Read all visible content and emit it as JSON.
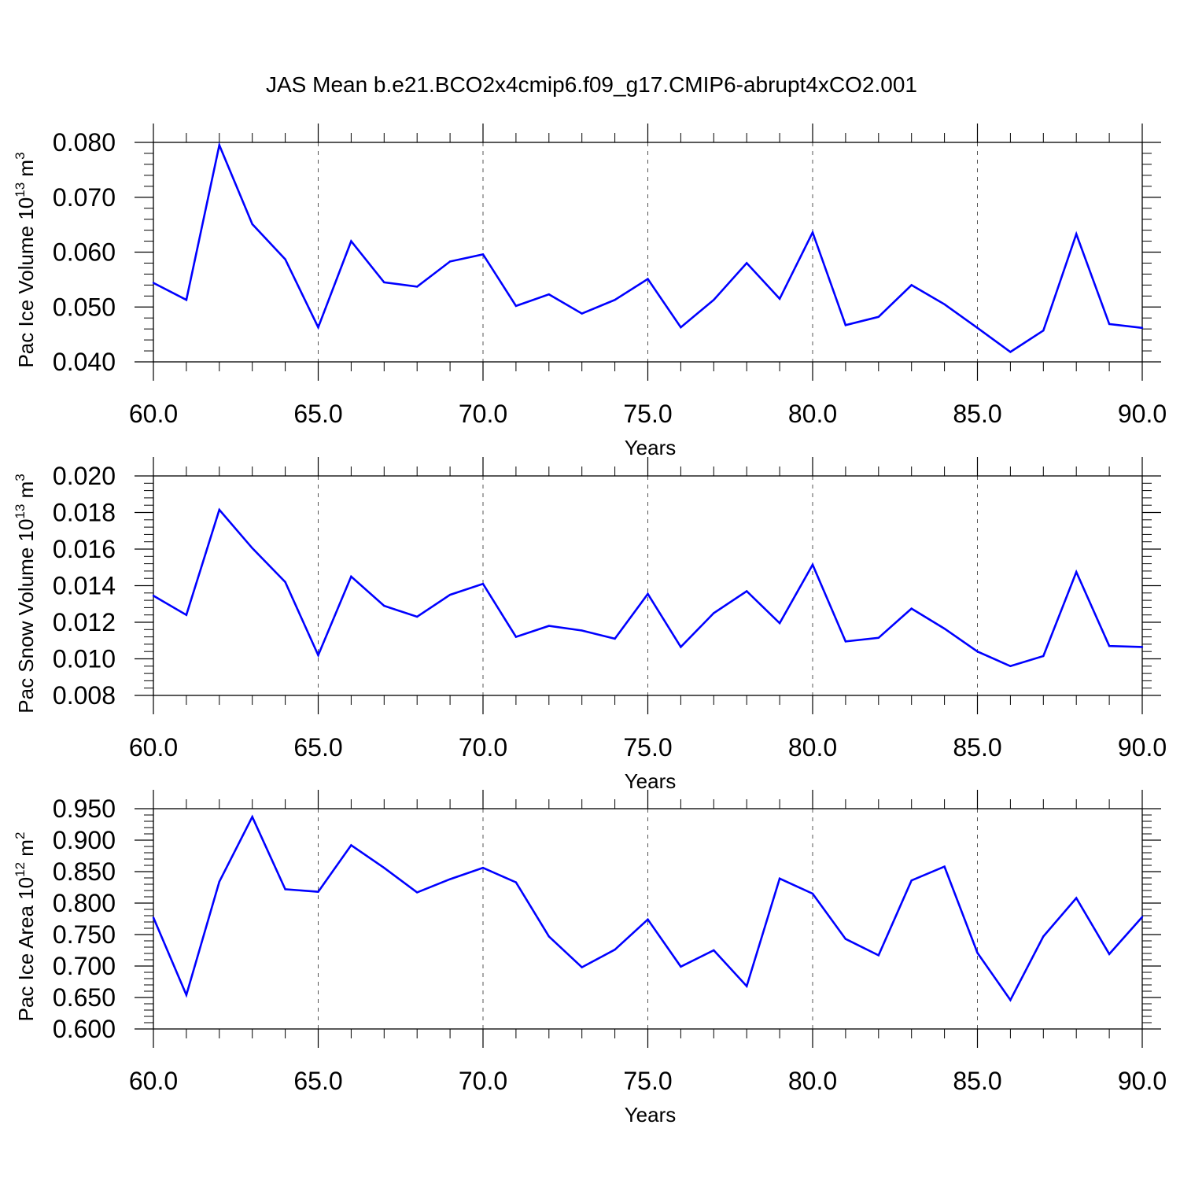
{
  "title": "JAS Mean b.e21.BCO2x4cmip6.f09_g17.CMIP6-abrupt4xCO2.001",
  "colors": {
    "line": "#0000ff",
    "axis": "#000000",
    "grid": "#555555"
  },
  "chart_data": [
    {
      "type": "line",
      "ylabel_prefix": "Pac Ice Volume 10",
      "ylabel_exp": "13",
      "ylabel_unit": " m",
      "ylabel_unit_exp": "3",
      "xlabel": "Years",
      "xlim": [
        60,
        90
      ],
      "ylim": [
        0.04,
        0.08
      ],
      "xticks": [
        "60.0",
        "65.0",
        "70.0",
        "75.0",
        "80.0",
        "85.0",
        "90.0"
      ],
      "yticks": [
        "0.040",
        "0.050",
        "0.060",
        "0.070",
        "0.080"
      ],
      "grid": "x dashed",
      "x": [
        60,
        61,
        62,
        63,
        64,
        65,
        66,
        67,
        68,
        69,
        70,
        71,
        72,
        73,
        74,
        75,
        76,
        77,
        78,
        79,
        80,
        81,
        82,
        83,
        84,
        85,
        86,
        87,
        88,
        89,
        90
      ],
      "values": [
        0.0544,
        0.0513,
        0.0795,
        0.0651,
        0.0587,
        0.0463,
        0.062,
        0.0545,
        0.0537,
        0.0583,
        0.0596,
        0.0502,
        0.0523,
        0.0488,
        0.0513,
        0.0551,
        0.0463,
        0.0513,
        0.058,
        0.0515,
        0.0636,
        0.0467,
        0.0482,
        0.054,
        0.0505,
        0.0462,
        0.0418,
        0.0457,
        0.0633,
        0.0469,
        0.0462
      ]
    },
    {
      "type": "line",
      "ylabel_prefix": "Pac Snow Volume 10",
      "ylabel_exp": "13",
      "ylabel_unit": " m",
      "ylabel_unit_exp": "3",
      "xlabel": "Years",
      "xlim": [
        60,
        90
      ],
      "ylim": [
        0.008,
        0.02
      ],
      "xticks": [
        "60.0",
        "65.0",
        "70.0",
        "75.0",
        "80.0",
        "85.0",
        "90.0"
      ],
      "yticks": [
        "0.008",
        "0.010",
        "0.012",
        "0.014",
        "0.016",
        "0.018",
        "0.020"
      ],
      "grid": "x dashed",
      "x": [
        60,
        61,
        62,
        63,
        64,
        65,
        66,
        67,
        68,
        69,
        70,
        71,
        72,
        73,
        74,
        75,
        76,
        77,
        78,
        79,
        80,
        81,
        82,
        83,
        84,
        85,
        86,
        87,
        88,
        89,
        90
      ],
      "values": [
        0.01345,
        0.0124,
        0.01815,
        0.01605,
        0.0142,
        0.0102,
        0.0145,
        0.0129,
        0.0123,
        0.0135,
        0.0141,
        0.0112,
        0.0118,
        0.01155,
        0.0111,
        0.01355,
        0.01065,
        0.0125,
        0.0137,
        0.01195,
        0.01515,
        0.01095,
        0.01115,
        0.01275,
        0.01165,
        0.0104,
        0.0096,
        0.01015,
        0.01475,
        0.0107,
        0.01065
      ]
    },
    {
      "type": "line",
      "ylabel_prefix": "Pac Ice Area 10",
      "ylabel_exp": "12",
      "ylabel_unit": " m",
      "ylabel_unit_exp": "2",
      "xlabel": "Years",
      "xlim": [
        60,
        90
      ],
      "ylim": [
        0.6,
        0.95
      ],
      "xticks": [
        "60.0",
        "65.0",
        "70.0",
        "75.0",
        "80.0",
        "85.0",
        "90.0"
      ],
      "yticks": [
        "0.600",
        "0.650",
        "0.700",
        "0.750",
        "0.800",
        "0.850",
        "0.900",
        "0.950"
      ],
      "grid": "x dashed",
      "x": [
        60,
        61,
        62,
        63,
        64,
        65,
        66,
        67,
        68,
        69,
        70,
        71,
        72,
        73,
        74,
        75,
        76,
        77,
        78,
        79,
        80,
        81,
        82,
        83,
        84,
        85,
        86,
        87,
        88,
        89,
        90
      ],
      "values": [
        0.777,
        0.654,
        0.834,
        0.937,
        0.822,
        0.818,
        0.892,
        0.856,
        0.817,
        0.838,
        0.856,
        0.833,
        0.747,
        0.698,
        0.726,
        0.774,
        0.699,
        0.725,
        0.668,
        0.839,
        0.815,
        0.743,
        0.717,
        0.836,
        0.858,
        0.721,
        0.646,
        0.747,
        0.808,
        0.719,
        0.778
      ]
    }
  ]
}
